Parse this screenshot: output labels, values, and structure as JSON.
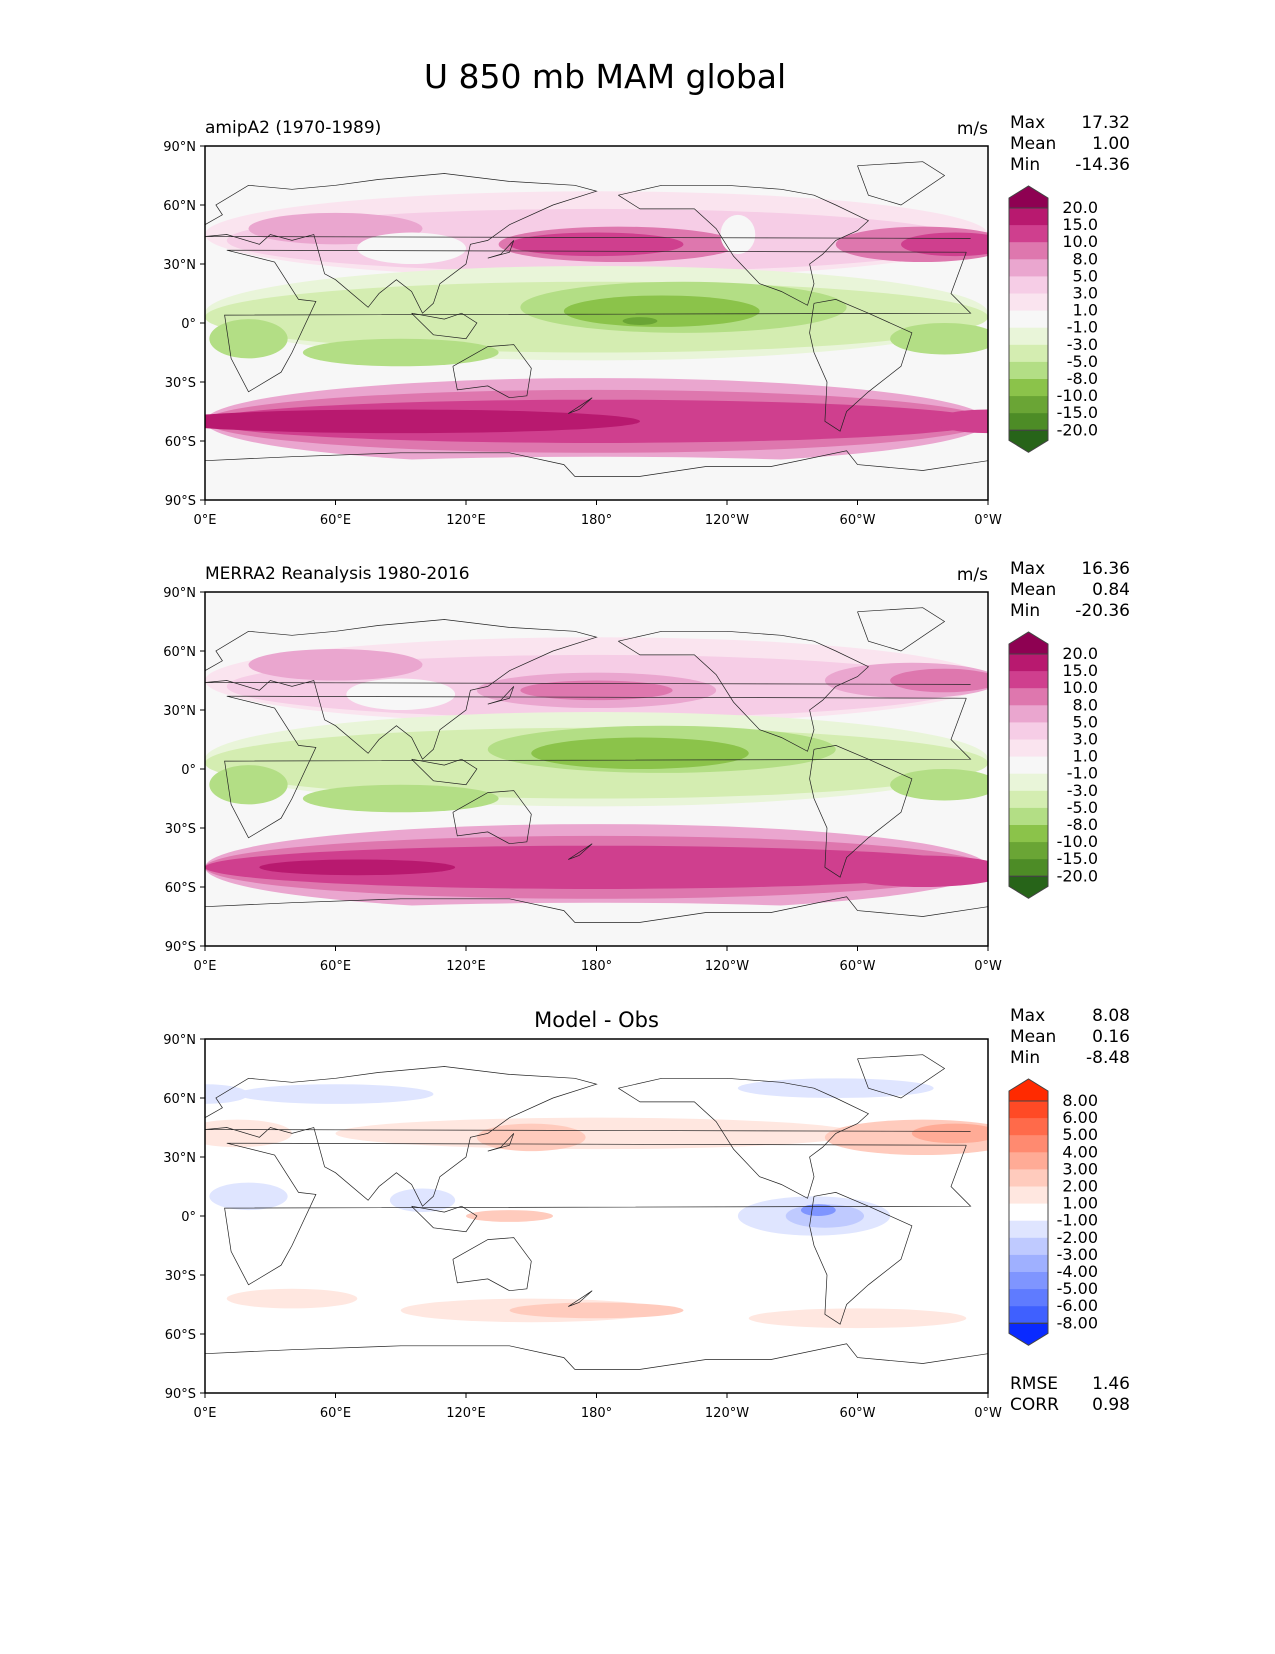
{
  "title": "U 850 mb MAM global",
  "chart_data": [
    {
      "type": "heatmap",
      "title": "amipA2 (1970-1989)",
      "units": "m/s",
      "stats": {
        "max_label": "Max",
        "max": "17.32",
        "mean_label": "Mean",
        "mean": "1.00",
        "min_label": "Min",
        "min": "-14.36"
      },
      "colorbar": {
        "levels": [
          "20.0",
          "15.0",
          "10.0",
          "8.0",
          "5.0",
          "3.0",
          "1.0",
          "-1.0",
          "-3.0",
          "-5.0",
          "-8.0",
          "-10.0",
          "-15.0",
          "-20.0"
        ],
        "colors": [
          "#8e0152",
          "#b8196f",
          "#cf3f8e",
          "#de77ae",
          "#eaa6cf",
          "#f6cde6",
          "#fae4ef",
          "#f7f7f7",
          "#e9f5d9",
          "#d4edb1",
          "#b3de85",
          "#8bc34a",
          "#6aa535",
          "#4d8c26",
          "#276419"
        ]
      },
      "yticks": [
        "90°N",
        "60°N",
        "30°N",
        "0°",
        "30°S",
        "60°S",
        "90°S"
      ],
      "xticks": [
        "0°E",
        "60°E",
        "120°E",
        "180°",
        "120°W",
        "60°W",
        "0°W"
      ]
    },
    {
      "type": "heatmap",
      "title": "MERRA2 Reanalysis 1980-2016",
      "units": "m/s",
      "stats": {
        "max_label": "Max",
        "max": "16.36",
        "mean_label": "Mean",
        "mean": "0.84",
        "min_label": "Min",
        "min": "-20.36"
      },
      "colorbar": {
        "levels": [
          "20.0",
          "15.0",
          "10.0",
          "8.0",
          "5.0",
          "3.0",
          "1.0",
          "-1.0",
          "-3.0",
          "-5.0",
          "-8.0",
          "-10.0",
          "-15.0",
          "-20.0"
        ],
        "colors": [
          "#8e0152",
          "#b8196f",
          "#cf3f8e",
          "#de77ae",
          "#eaa6cf",
          "#f6cde6",
          "#fae4ef",
          "#f7f7f7",
          "#e9f5d9",
          "#d4edb1",
          "#b3de85",
          "#8bc34a",
          "#6aa535",
          "#4d8c26",
          "#276419"
        ]
      },
      "yticks": [
        "90°N",
        "60°N",
        "30°N",
        "0°",
        "30°S",
        "60°S",
        "90°S"
      ],
      "xticks": [
        "0°E",
        "60°E",
        "120°E",
        "180°",
        "120°W",
        "60°W",
        "0°W"
      ]
    },
    {
      "type": "heatmap",
      "title": "Model - Obs",
      "units": "",
      "stats": {
        "max_label": "Max",
        "max": "8.08",
        "mean_label": "Mean",
        "mean": "0.16",
        "min_label": "Min",
        "min": "-8.48",
        "rmse_label": "RMSE",
        "rmse": "1.46",
        "corr_label": "CORR",
        "corr": "0.98"
      },
      "colorbar": {
        "levels": [
          "8.00",
          "6.00",
          "5.00",
          "4.00",
          "3.00",
          "2.00",
          "1.00",
          "-1.00",
          "-2.00",
          "-3.00",
          "-4.00",
          "-5.00",
          "-6.00",
          "-8.00"
        ],
        "colors": [
          "#ff2a00",
          "#ff4a25",
          "#ff6a4a",
          "#ff8a70",
          "#ffab96",
          "#ffcbbd",
          "#ffe7e0",
          "#ffffff",
          "#dfe5ff",
          "#bfcaff",
          "#9fb0ff",
          "#7f95ff",
          "#5f7bff",
          "#3f60ff",
          "#0a2aff"
        ]
      },
      "yticks": [
        "90°N",
        "60°N",
        "30°N",
        "0°",
        "30°S",
        "60°S",
        "90°S"
      ],
      "xticks": [
        "0°E",
        "60°E",
        "120°E",
        "180°",
        "120°W",
        "60°W",
        "0°W"
      ]
    }
  ]
}
